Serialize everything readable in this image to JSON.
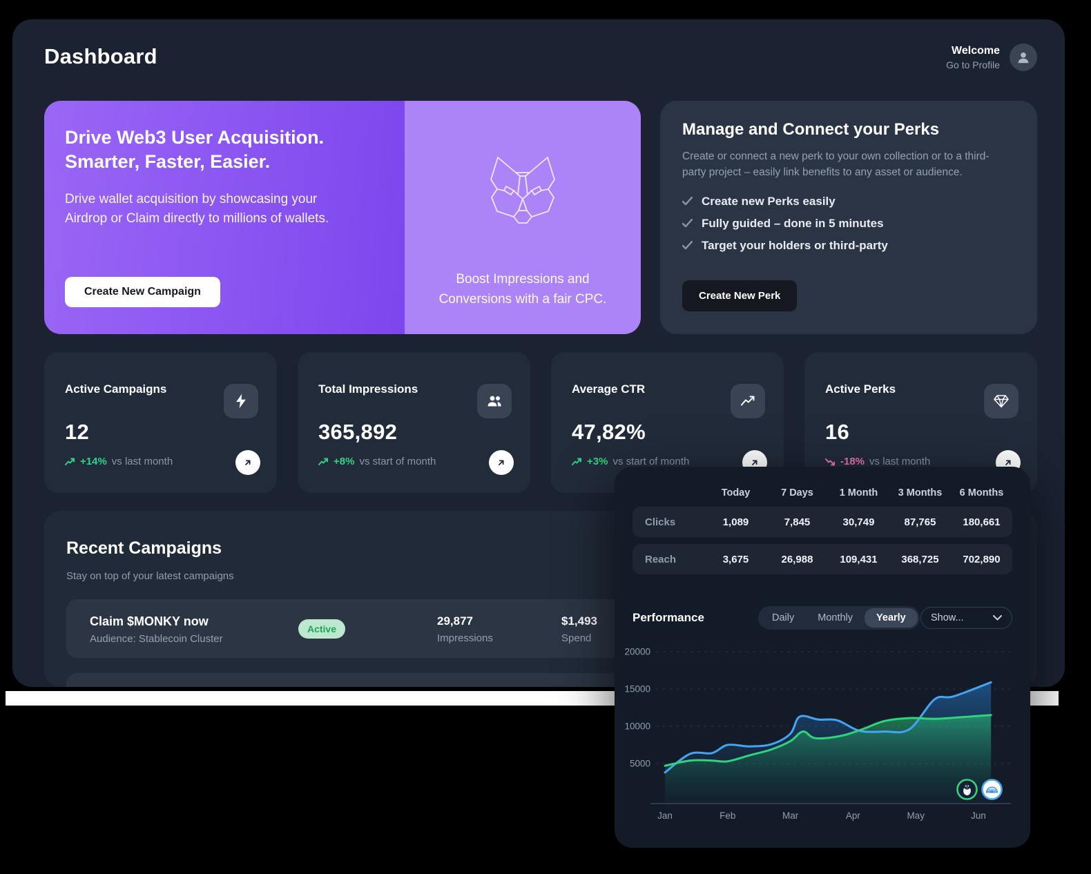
{
  "page": {
    "title": "Dashboard"
  },
  "header": {
    "welcome": "Welcome",
    "profile_link": "Go to Profile"
  },
  "promo": {
    "title_line1": "Drive Web3 User Acquisition.",
    "title_line2": "Smarter, Faster, Easier.",
    "description_line1": "Drive wallet acquisition by showcasing your",
    "description_line2": "Airdrop or Claim directly to millions of wallets.",
    "cta": "Create New Campaign",
    "aside_caption_line1": "Boost Impressions and",
    "aside_caption_line2": "Conversions with a fair CPC.",
    "colors": {
      "gradient_start": "#9a66f5",
      "gradient_end": "#7d46ee",
      "aside_bg": "#ad84f8"
    }
  },
  "perks": {
    "title": "Manage and Connect your Perks",
    "description": "Create or connect a new perk to your own collection or to a third-party project – easily link benefits to any asset or audience.",
    "items": [
      "Create new Perks easily",
      "Fully guided – done in 5 minutes",
      "Target your holders or third-party"
    ],
    "cta": "Create New Perk"
  },
  "stats": [
    {
      "label": "Active Campaigns",
      "value": "12",
      "delta": "+14%",
      "delta_suffix": "vs last month",
      "trend": "up",
      "icon": "lightning-icon"
    },
    {
      "label": "Total Impressions",
      "value": "365,892",
      "delta": "+8%",
      "delta_suffix": "vs start of month",
      "trend": "up",
      "icon": "people-icon"
    },
    {
      "label": "Average CTR",
      "value": "47,82%",
      "delta": "+3%",
      "delta_suffix": "vs start of month",
      "trend": "up",
      "icon": "trend-up-icon"
    },
    {
      "label": "Active Perks",
      "value": "16",
      "delta": "-18%",
      "delta_suffix": "vs last month",
      "trend": "down",
      "icon": "diamond-icon"
    }
  ],
  "stat_colors": {
    "up": "#2dd584",
    "down": "#ef77b4"
  },
  "recent_campaigns": {
    "title": "Recent Campaigns",
    "subtitle": "Stay on top of your latest campaigns",
    "rows": [
      {
        "name": "Claim $MONKY now",
        "audience": "Audience: Stablecoin Cluster",
        "status": "Active",
        "impressions": "29,877",
        "impressions_label": "Impressions",
        "spend": "$1,493",
        "spend_label": "Spend"
      }
    ]
  },
  "overlay": {
    "table": {
      "columns": [
        "Today",
        "7 Days",
        "1 Month",
        "3 Months",
        "6 Months"
      ],
      "rows": [
        {
          "label": "Clicks",
          "values": [
            "1,089",
            "7,845",
            "30,749",
            "87,765",
            "180,661"
          ]
        },
        {
          "label": "Reach",
          "values": [
            "3,675",
            "26,988",
            "109,431",
            "368,725",
            "702,890"
          ]
        }
      ]
    },
    "performance": {
      "title": "Performance",
      "tabs": [
        "Daily",
        "Monthly",
        "Yearly"
      ],
      "active_tab": "Yearly",
      "show_label": "Show..."
    }
  },
  "chart_data": {
    "type": "area",
    "title": "Performance",
    "x_categories": [
      "Jan",
      "Feb",
      "Mar",
      "Apr",
      "May",
      "Jun"
    ],
    "ylim": [
      0,
      20000
    ],
    "yticks": [
      5000,
      10000,
      15000,
      20000
    ],
    "grid": "horizontal-dashed",
    "legend": "two token logo badges (penguin, igloo) bottom-right",
    "series": [
      {
        "name": "blue",
        "color": "#45a5f5",
        "fill_top": "rgba(38,122,202,0.55)",
        "fill_bottom": "rgba(23,58,88,0.06)",
        "points": [
          [
            0,
            3800
          ],
          [
            0.4,
            6300
          ],
          [
            0.75,
            6400
          ],
          [
            1.0,
            7500
          ],
          [
            1.35,
            7300
          ],
          [
            1.7,
            7600
          ],
          [
            2.0,
            9000
          ],
          [
            2.15,
            11300
          ],
          [
            2.45,
            10900
          ],
          [
            2.75,
            10800
          ],
          [
            3.1,
            9400
          ],
          [
            3.5,
            9300
          ],
          [
            3.9,
            9600
          ],
          [
            4.3,
            13600
          ],
          [
            4.6,
            14000
          ],
          [
            5.2,
            15900
          ]
        ]
      },
      {
        "name": "green",
        "color": "#2fd57c",
        "fill_top": "rgba(43,200,120,0.55)",
        "fill_bottom": "rgba(14,70,60,0.10)",
        "points": [
          [
            0,
            4700
          ],
          [
            0.4,
            5400
          ],
          [
            0.75,
            5400
          ],
          [
            1.0,
            5300
          ],
          [
            1.35,
            6100
          ],
          [
            1.7,
            6900
          ],
          [
            2.0,
            8000
          ],
          [
            2.2,
            9300
          ],
          [
            2.4,
            8400
          ],
          [
            2.8,
            8700
          ],
          [
            3.15,
            9600
          ],
          [
            3.5,
            10700
          ],
          [
            3.9,
            11100
          ],
          [
            4.3,
            11000
          ],
          [
            4.7,
            11200
          ],
          [
            5.2,
            11500
          ]
        ]
      }
    ]
  }
}
